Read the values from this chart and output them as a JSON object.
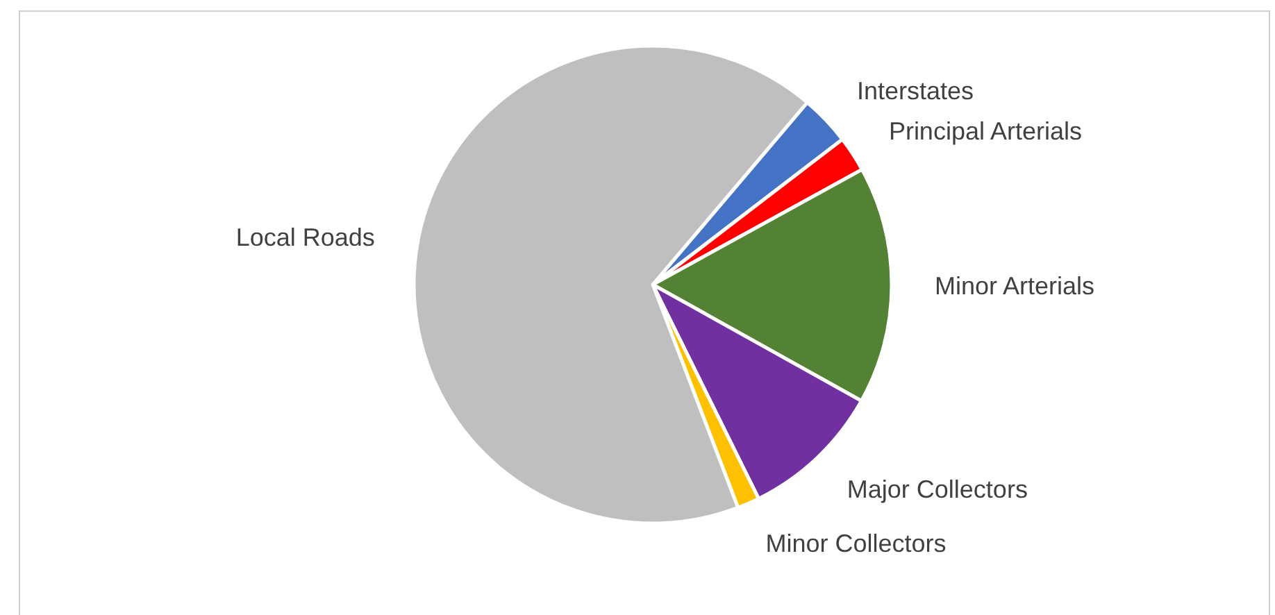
{
  "chart_data": {
    "type": "pie",
    "categories": [
      "Interstates",
      "Principal Arterials",
      "Minor Arterials",
      "Major Collectors",
      "Minor Collectors",
      "Local Roads"
    ],
    "values": [
      3.4,
      2.4,
      16.1,
      9.6,
      1.5,
      67.0
    ],
    "colors": [
      "#4472c4",
      "#ff0000",
      "#548235",
      "#7030a0",
      "#ffc000",
      "#bfbfbf"
    ],
    "legend": false
  }
}
